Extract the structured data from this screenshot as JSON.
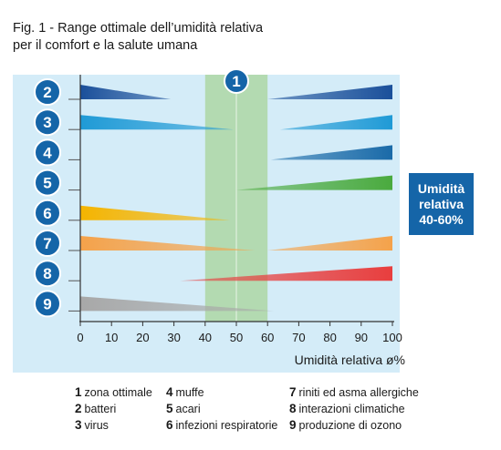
{
  "title_line1": "Fig. 1  - Range ottimale dell’umidità relativa",
  "title_line2": "per il comfort e la salute umana",
  "side_label": [
    "Umidità",
    "relativa",
    "40-60%"
  ],
  "colors": {
    "panel": "#d4ecf8",
    "badge": "#1565a8",
    "optimal": "#a8d49a",
    "axis": "#333333"
  },
  "legend": [
    [
      {
        "num": "1",
        "label": "zona ottimale"
      },
      {
        "num": "2",
        "label": "batteri"
      },
      {
        "num": "3",
        "label": "virus"
      }
    ],
    [
      {
        "num": "4",
        "label": "muffe"
      },
      {
        "num": "5",
        "label": "acari"
      },
      {
        "num": "6",
        "label": "infezioni respiratorie"
      }
    ],
    [
      {
        "num": "7",
        "label": "riniti ed asma allergiche"
      },
      {
        "num": "8",
        "label": "interazioni climatiche"
      },
      {
        "num": "9",
        "label": "produzione di ozono"
      }
    ]
  ],
  "chart_data": {
    "type": "area",
    "xlabel": "Umidità relativa ø%",
    "xlim": [
      0,
      100
    ],
    "x_ticks": [
      0,
      10,
      20,
      30,
      40,
      50,
      60,
      70,
      80,
      90,
      100
    ],
    "optimal_zone": {
      "id": "1",
      "from": 40,
      "to": 60
    },
    "series": [
      {
        "id": "2",
        "color": "#1a4f9a",
        "segments": [
          {
            "from": 0,
            "to": 29,
            "peak": "left"
          },
          {
            "from": 60,
            "to": 100,
            "peak": "right"
          }
        ]
      },
      {
        "id": "3",
        "color": "#1f9ad6",
        "segments": [
          {
            "from": 0,
            "to": 49,
            "peak": "left"
          },
          {
            "from": 64,
            "to": 100,
            "peak": "right"
          }
        ]
      },
      {
        "id": "4",
        "color": "#1a6aa8",
        "segments": [
          {
            "from": 61,
            "to": 100,
            "peak": "right"
          }
        ]
      },
      {
        "id": "5",
        "color": "#4aaa3e",
        "segments": [
          {
            "from": 50,
            "to": 100,
            "peak": "right"
          }
        ]
      },
      {
        "id": "6",
        "color": "#f5b400",
        "segments": [
          {
            "from": 0,
            "to": 48,
            "peak": "left"
          }
        ]
      },
      {
        "id": "7",
        "color": "#f5a24a",
        "segments": [
          {
            "from": 0,
            "to": 56,
            "peak": "left"
          },
          {
            "from": 60,
            "to": 100,
            "peak": "right"
          }
        ]
      },
      {
        "id": "8",
        "color": "#e83e3e",
        "segments": [
          {
            "from": 32,
            "to": 100,
            "peak": "right"
          }
        ]
      },
      {
        "id": "9",
        "color": "#a8a8a8",
        "segments": [
          {
            "from": 0,
            "to": 62,
            "peak": "left"
          }
        ]
      }
    ]
  }
}
